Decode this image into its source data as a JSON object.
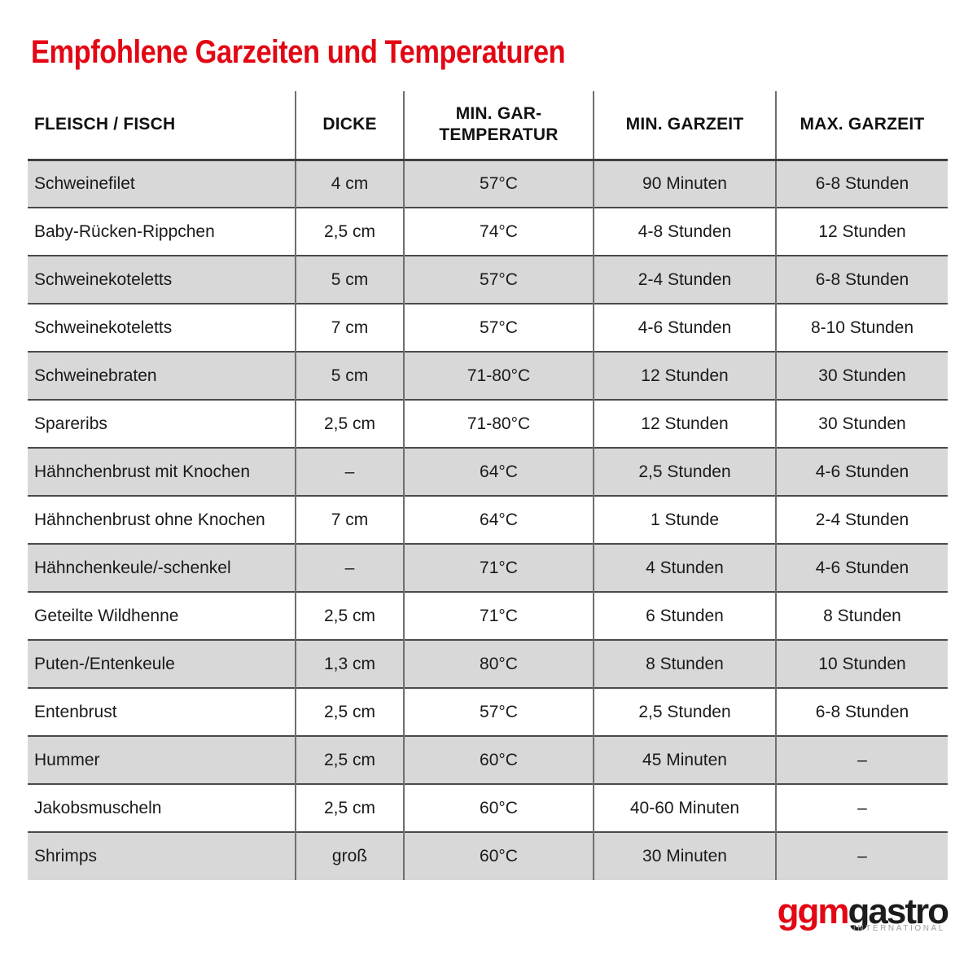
{
  "title": "Empfohlene Garzeiten und Temperaturen",
  "colors": {
    "accent_red": "#e30613",
    "row_gray": "#d8d8d8",
    "row_white": "#ffffff",
    "row_border": "#4a4a4a",
    "column_border": "#6f6f6f",
    "text_dark": "#1a1a1a",
    "logo_subtitle_gray": "#9d9d9c"
  },
  "table": {
    "columns": [
      "FLEISCH / FISCH",
      "DICKE",
      "MIN. GAR-\nTEMPERATUR",
      "MIN. GARZEIT",
      "MAX. GARZEIT"
    ],
    "rows": [
      [
        "Schweinefilet",
        "4 cm",
        "57°C",
        "90 Minuten",
        "6-8 Stunden"
      ],
      [
        "Baby-Rücken-Rippchen",
        "2,5 cm",
        "74°C",
        "4-8 Stunden",
        "12 Stunden"
      ],
      [
        "Schweinekoteletts",
        "5 cm",
        "57°C",
        "2-4 Stunden",
        "6-8 Stunden"
      ],
      [
        "Schweinekoteletts",
        "7 cm",
        "57°C",
        "4-6 Stunden",
        "8-10 Stunden"
      ],
      [
        "Schweinebraten",
        "5 cm",
        "71-80°C",
        "12 Stunden",
        "30 Stunden"
      ],
      [
        "Spareribs",
        "2,5 cm",
        "71-80°C",
        "12 Stunden",
        "30 Stunden"
      ],
      [
        "Hähnchenbrust mit Knochen",
        "–",
        "64°C",
        "2,5 Stunden",
        "4-6 Stunden"
      ],
      [
        "Hähnchenbrust ohne Knochen",
        "7 cm",
        "64°C",
        "1 Stunde",
        "2-4 Stunden"
      ],
      [
        "Hähnchenkeule/-schenkel",
        "–",
        "71°C",
        "4 Stunden",
        "4-6 Stunden"
      ],
      [
        "Geteilte Wildhenne",
        "2,5 cm",
        "71°C",
        "6 Stunden",
        "8 Stunden"
      ],
      [
        "Puten-/Entenkeule",
        "1,3 cm",
        "80°C",
        "8 Stunden",
        "10 Stunden"
      ],
      [
        "Entenbrust",
        "2,5 cm",
        "57°C",
        "2,5 Stunden",
        "6-8 Stunden"
      ],
      [
        "Hummer",
        "2,5 cm",
        "60°C",
        "45 Minuten",
        "–"
      ],
      [
        "Jakobsmuscheln",
        "2,5 cm",
        "60°C",
        "40-60 Minuten",
        "–"
      ],
      [
        "Shrimps",
        "groß",
        "60°C",
        "30 Minuten",
        "–"
      ]
    ]
  },
  "logo": {
    "part1": "ggm",
    "part2": "gastro",
    "subtitle": "INTERNATIONAL"
  }
}
